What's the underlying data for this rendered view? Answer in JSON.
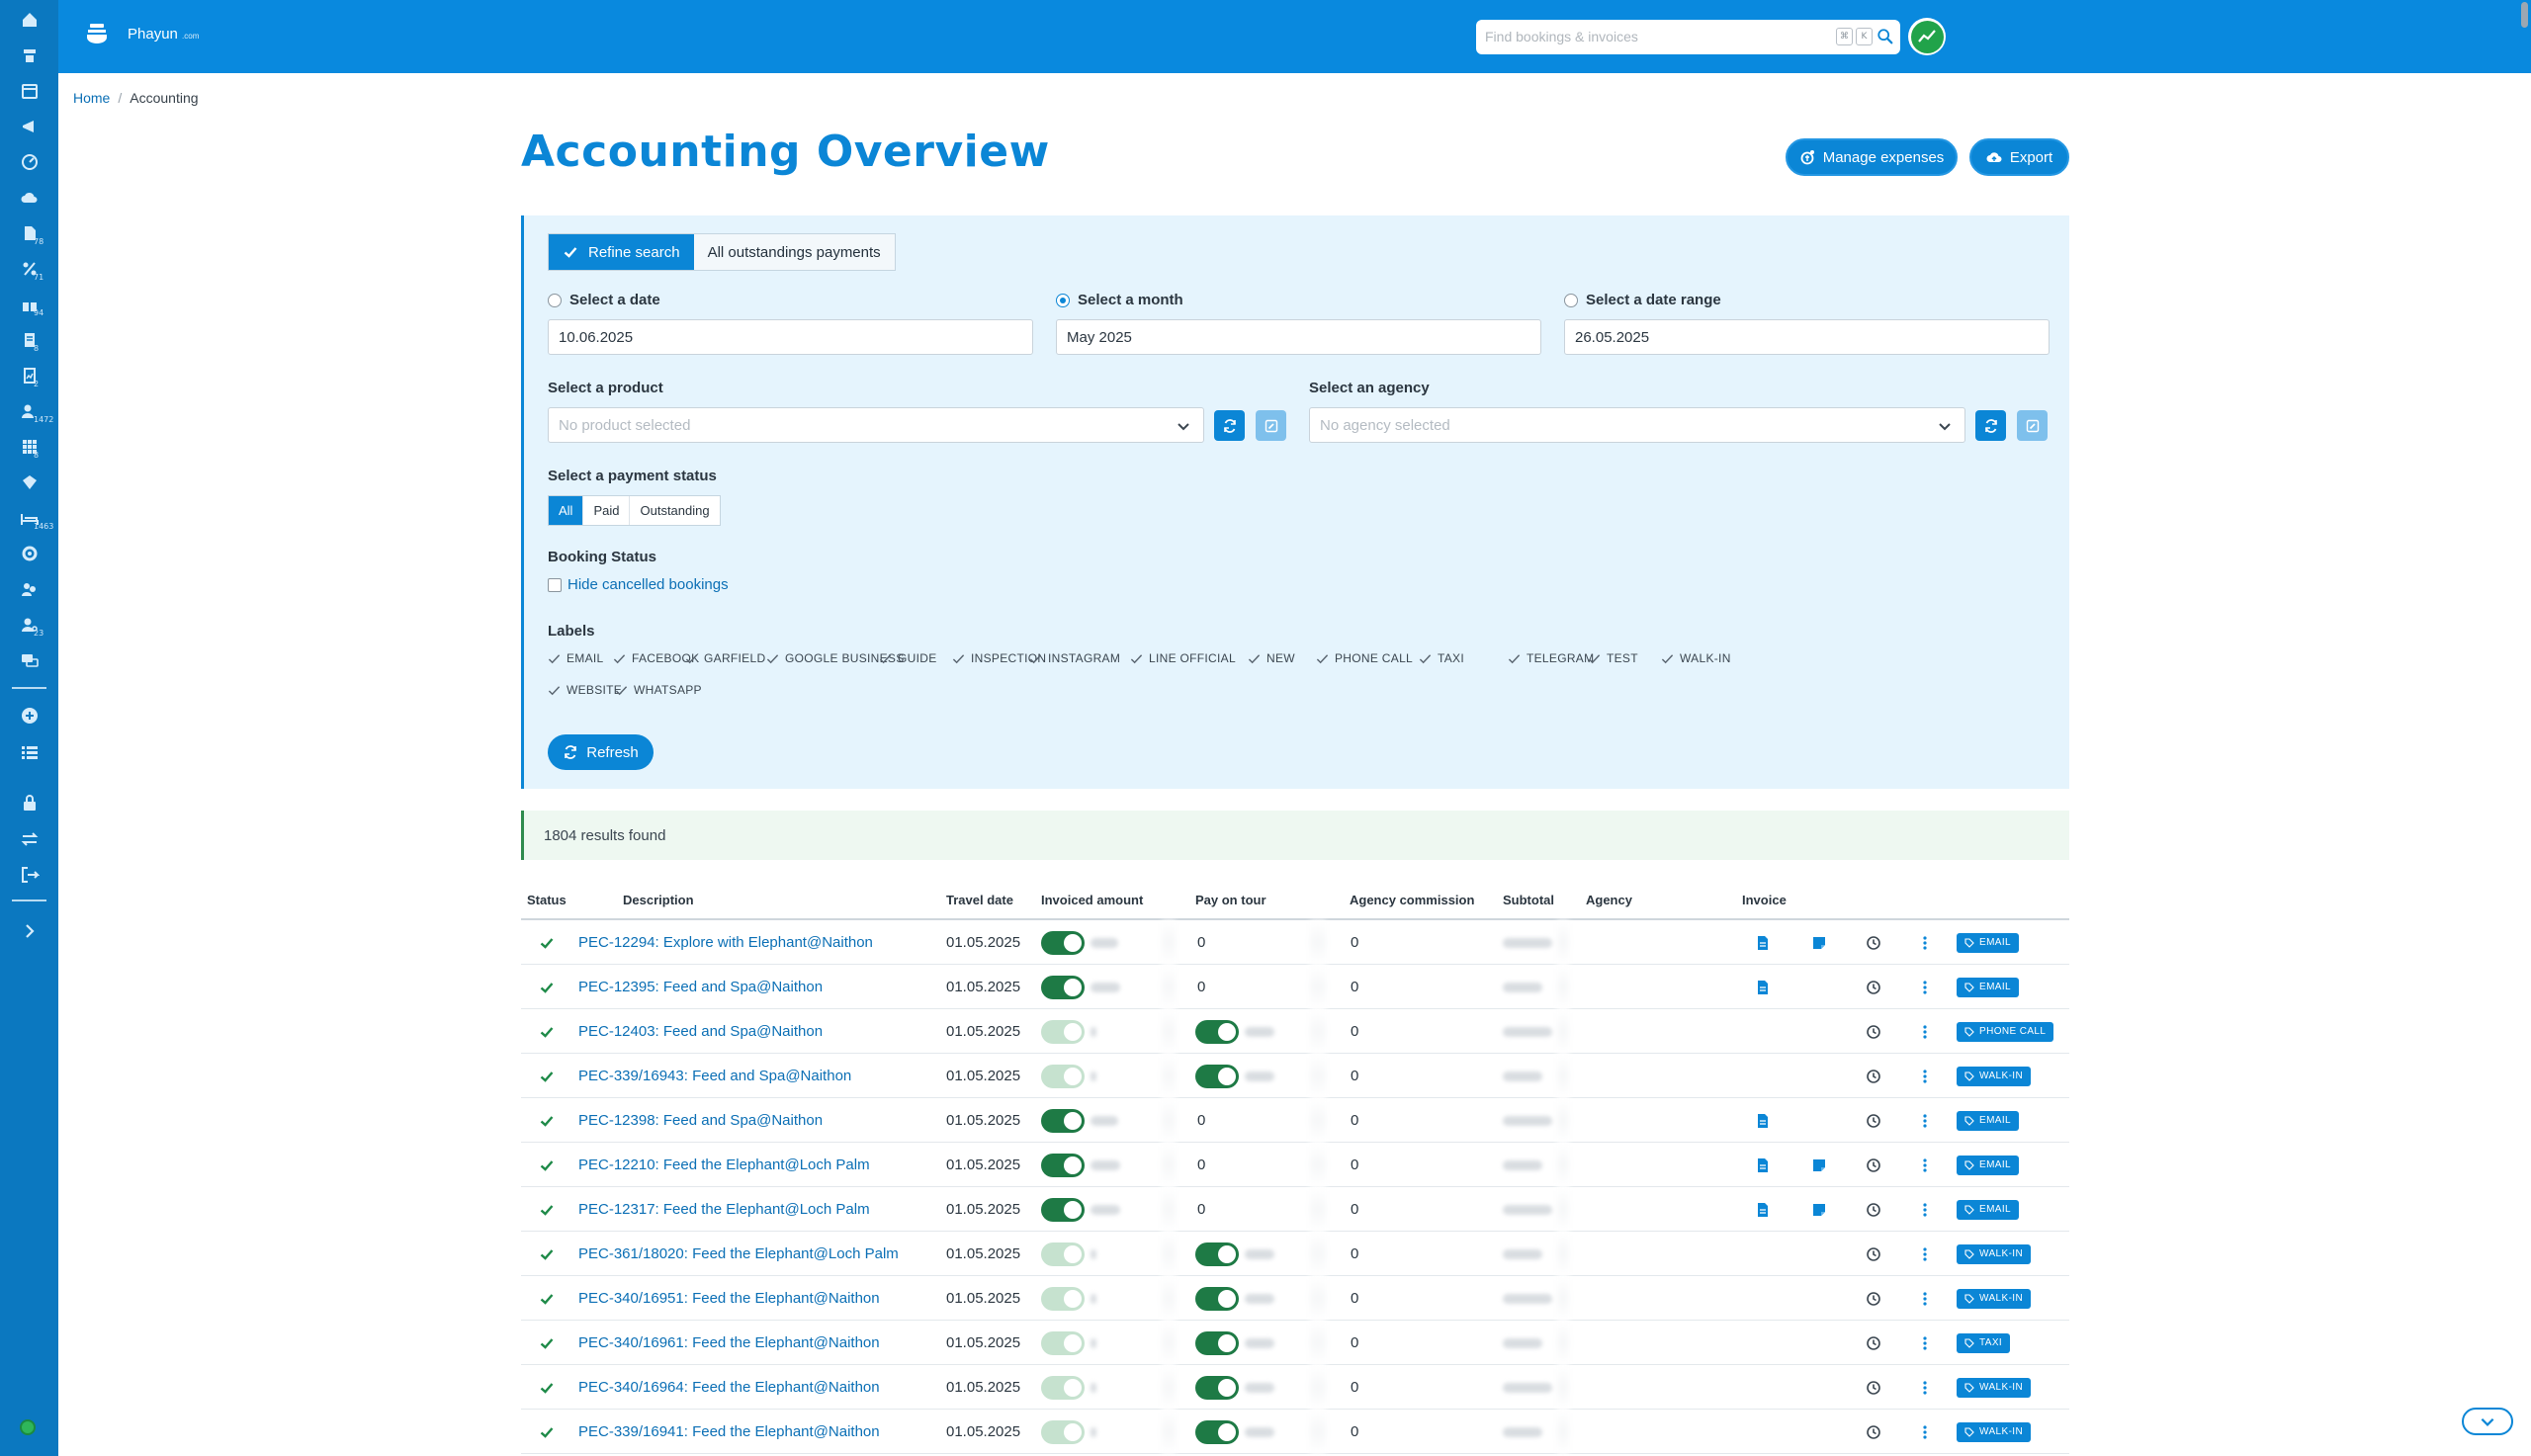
{
  "app": {
    "brand": "Phayun",
    "brand_suffix": ".com",
    "search_placeholder": "Find bookings & invoices",
    "search_kbd": [
      "⌘",
      "K"
    ]
  },
  "rail": {
    "badges": [
      "78",
      "71",
      "94",
      "8",
      "2",
      "1472",
      "8",
      "1463",
      "23"
    ]
  },
  "breadcrumb": {
    "home": "Home",
    "current": "Accounting"
  },
  "page": {
    "title": "Accounting Overview",
    "manage_expenses": "Manage expenses",
    "export": "Export"
  },
  "filters": {
    "tabs": [
      "Refine search",
      "All outstandings payments"
    ],
    "date": {
      "label": "Select a date",
      "value": "10.06.2025"
    },
    "month": {
      "label": "Select a month",
      "value": "May 2025"
    },
    "range": {
      "label": "Select a date range",
      "value": "26.05.2025"
    },
    "selected_mode": "month",
    "product": {
      "label": "Select a product",
      "placeholder": "No product selected"
    },
    "agency": {
      "label": "Select an agency",
      "placeholder": "No agency selected"
    },
    "payment_status": {
      "label": "Select a payment status",
      "options": [
        "All",
        "Paid",
        "Outstanding"
      ],
      "selected": "All"
    },
    "booking_status": {
      "label": "Booking Status",
      "hide_cancelled": "Hide cancelled bookings"
    },
    "labels": {
      "label": "Labels",
      "items": [
        "EMAIL",
        "FACEBOOK",
        "GARFIELD",
        "GOOGLE BUSINESS",
        "GUIDE",
        "INSPECTION",
        "INSTAGRAM",
        "LINE OFFICIAL",
        "NEW",
        "PHONE CALL",
        "TAXI",
        "TELEGRAM",
        "TEST",
        "WALK-IN",
        "WEBSITE",
        "WHATSAPP"
      ]
    },
    "refresh": "Refresh"
  },
  "results": {
    "text": "1804 results found"
  },
  "table": {
    "headers": {
      "status": "Status",
      "description": "Description",
      "travel_date": "Travel date",
      "invoiced_amount": "Invoiced amount",
      "pay_on_tour": "Pay on tour",
      "agency_commission": "Agency commission",
      "subtotal": "Subtotal",
      "agency": "Agency",
      "invoice": "Invoice"
    },
    "rows": [
      {
        "desc": "PEC-12294: Explore with Elephant@Naithon",
        "date": "01.05.2025",
        "invoiced_on": true,
        "pay_tour_on": false,
        "pay_tour_val": "0",
        "commission": "0",
        "invoice_doc": true,
        "invoice_note": true,
        "tag": "EMAIL"
      },
      {
        "desc": "PEC-12395: Feed and Spa@Naithon",
        "date": "01.05.2025",
        "invoiced_on": true,
        "pay_tour_on": false,
        "pay_tour_val": "0",
        "commission": "0",
        "invoice_doc": true,
        "invoice_note": false,
        "tag": "EMAIL"
      },
      {
        "desc": "PEC-12403: Feed and Spa@Naithon",
        "date": "01.05.2025",
        "invoiced_on": false,
        "pay_tour_on": true,
        "pay_tour_val": "",
        "commission": "0",
        "invoice_doc": false,
        "invoice_note": false,
        "tag": "PHONE CALL"
      },
      {
        "desc": "PEC-339/16943: Feed and Spa@Naithon",
        "date": "01.05.2025",
        "invoiced_on": false,
        "pay_tour_on": true,
        "pay_tour_val": "",
        "commission": "0",
        "invoice_doc": false,
        "invoice_note": false,
        "tag": "WALK-IN"
      },
      {
        "desc": "PEC-12398: Feed and Spa@Naithon",
        "date": "01.05.2025",
        "invoiced_on": true,
        "pay_tour_on": false,
        "pay_tour_val": "0",
        "commission": "0",
        "invoice_doc": true,
        "invoice_note": false,
        "tag": "EMAIL"
      },
      {
        "desc": "PEC-12210: Feed the Elephant@Loch Palm",
        "date": "01.05.2025",
        "invoiced_on": true,
        "pay_tour_on": false,
        "pay_tour_val": "0",
        "commission": "0",
        "invoice_doc": true,
        "invoice_note": true,
        "tag": "EMAIL"
      },
      {
        "desc": "PEC-12317: Feed the Elephant@Loch Palm",
        "date": "01.05.2025",
        "invoiced_on": true,
        "pay_tour_on": false,
        "pay_tour_val": "0",
        "commission": "0",
        "invoice_doc": true,
        "invoice_note": true,
        "tag": "EMAIL"
      },
      {
        "desc": "PEC-361/18020: Feed the Elephant@Loch Palm",
        "date": "01.05.2025",
        "invoiced_on": false,
        "pay_tour_on": true,
        "pay_tour_val": "",
        "commission": "0",
        "invoice_doc": false,
        "invoice_note": false,
        "tag": "WALK-IN"
      },
      {
        "desc": "PEC-340/16951: Feed the Elephant@Naithon",
        "date": "01.05.2025",
        "invoiced_on": false,
        "pay_tour_on": true,
        "pay_tour_val": "",
        "commission": "0",
        "invoice_doc": false,
        "invoice_note": false,
        "tag": "WALK-IN"
      },
      {
        "desc": "PEC-340/16961: Feed the Elephant@Naithon",
        "date": "01.05.2025",
        "invoiced_on": false,
        "pay_tour_on": true,
        "pay_tour_val": "",
        "commission": "0",
        "invoice_doc": false,
        "invoice_note": false,
        "tag": "TAXI"
      },
      {
        "desc": "PEC-340/16964: Feed the Elephant@Naithon",
        "date": "01.05.2025",
        "invoiced_on": false,
        "pay_tour_on": true,
        "pay_tour_val": "",
        "commission": "0",
        "invoice_doc": false,
        "invoice_note": false,
        "tag": "WALK-IN"
      },
      {
        "desc": "PEC-339/16941: Feed the Elephant@Naithon",
        "date": "01.05.2025",
        "invoiced_on": false,
        "pay_tour_on": true,
        "pay_tour_val": "",
        "commission": "0",
        "invoice_doc": false,
        "invoice_note": false,
        "tag": "WALK-IN"
      }
    ]
  },
  "colors": {
    "primary": "#0b86d6",
    "topbar": "#0989de",
    "rail": "#0b78c0",
    "success": "#1e7a45"
  }
}
